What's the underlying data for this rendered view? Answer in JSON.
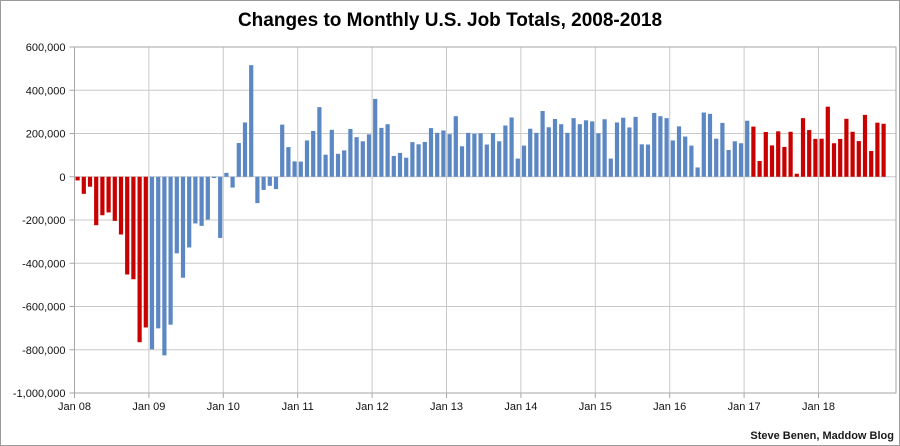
{
  "chart_data": {
    "type": "bar",
    "title": "Changes to Monthly U.S. Job Totals, 2008-2018",
    "source_credit": "Steve Benen, Maddow Blog",
    "values_unit": "thousands of jobs (bar values below are in thousands)",
    "start_month": "2008-01",
    "end_month": "2018-11",
    "grid": "on",
    "legend": "none",
    "y_axis": {
      "tick_labels": [
        "600,000",
        "400,000",
        "200,000",
        "0",
        "-200,000",
        "-400,000",
        "-600,000",
        "-800,000",
        "-1,000,000"
      ],
      "tick_values_thousands": [
        600,
        400,
        200,
        0,
        -200,
        -400,
        -600,
        -800,
        -1000
      ],
      "ylim_thousands": [
        -1000,
        600
      ]
    },
    "x_axis": {
      "tick_labels": [
        "Jan 08",
        "Jan 09",
        "Jan 10",
        "Jan 11",
        "Jan 12",
        "Jan 13",
        "Jan 14",
        "Jan 15",
        "Jan 16",
        "Jan 17",
        "Jan 18"
      ],
      "note": "one bar per month, January 2008 through November 2018"
    },
    "bar_colors": {
      "red": "#C90000",
      "blue": "#5B87C2"
    },
    "color_segments": [
      {
        "start": "2008-01",
        "end": "2008-12",
        "color": "red"
      },
      {
        "start": "2009-01",
        "end": "2017-01",
        "color": "blue"
      },
      {
        "start": "2017-02",
        "end": "2018-11",
        "color": "red"
      }
    ],
    "series": [
      {
        "year": 2008,
        "values": [
          -17,
          -79,
          -46,
          -224,
          -178,
          -165,
          -204,
          -267,
          -452,
          -474,
          -765,
          -697
        ]
      },
      {
        "year": 2009,
        "values": [
          -798,
          -701,
          -826,
          -684,
          -354,
          -467,
          -327,
          -216,
          -227,
          -198,
          -6,
          -283
        ]
      },
      {
        "year": 2010,
        "values": [
          18,
          -50,
          156,
          251,
          516,
          -122,
          -61,
          -42,
          -57,
          241,
          137,
          71
        ]
      },
      {
        "year": 2011,
        "values": [
          70,
          168,
          212,
          322,
          102,
          217,
          106,
          122,
          221,
          183,
          164,
          196
        ]
      },
      {
        "year": 2012,
        "values": [
          360,
          226,
          243,
          96,
          110,
          88,
          160,
          150,
          161,
          225,
          203,
          214
        ]
      },
      {
        "year": 2013,
        "values": [
          197,
          280,
          141,
          203,
          199,
          201,
          149,
          202,
          164,
          237,
          274,
          84
        ]
      },
      {
        "year": 2014,
        "values": [
          144,
          222,
          203,
          304,
          229,
          267,
          243,
          203,
          271,
          243,
          261,
          256
        ]
      },
      {
        "year": 2015,
        "values": [
          201,
          266,
          84,
          251,
          273,
          228,
          277,
          150,
          149,
          295,
          280,
          271
        ]
      },
      {
        "year": 2016,
        "values": [
          168,
          233,
          186,
          144,
          43,
          297,
          291,
          176,
          249,
          124,
          164,
          155
        ]
      },
      {
        "year": 2017,
        "values": [
          259,
          232,
          73,
          207,
          145,
          210,
          138,
          208,
          14,
          271,
          216,
          175
        ]
      },
      {
        "year": 2018,
        "values": [
          176,
          324,
          155,
          175,
          268,
          208,
          165,
          286,
          119,
          250,
          245
        ]
      }
    ]
  },
  "layout_colors": {
    "gridline": "#c9c9c9",
    "plot_border": "#a6a6a6",
    "background": "#ffffff"
  }
}
